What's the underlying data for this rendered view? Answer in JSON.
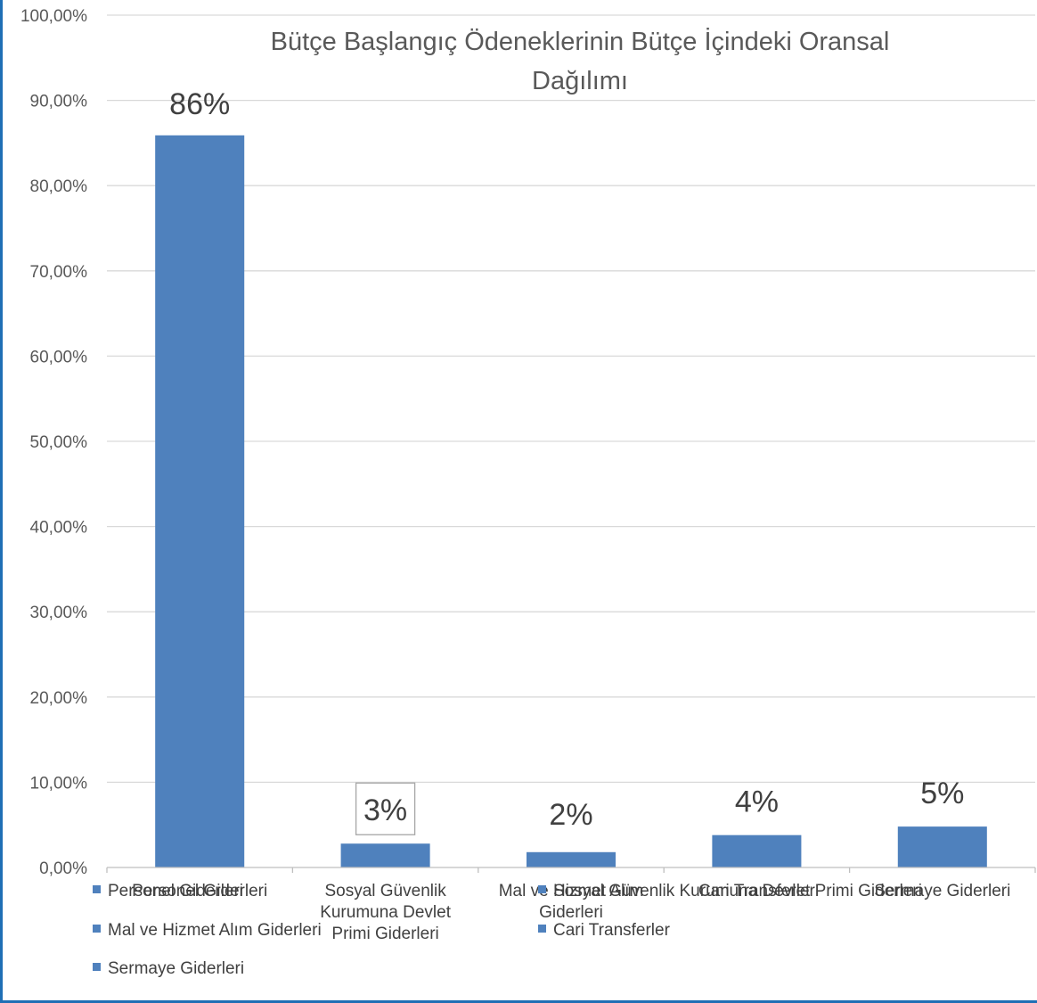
{
  "chart_data": {
    "type": "bar",
    "title_lines": [
      "Bütçe Başlangıç Ödeneklerinin Bütçe İçindeki Oransal",
      "Dağılımı"
    ],
    "categories": [
      [
        "Personel Giderleri"
      ],
      [
        "Sosyal Güvenlik",
        "Kurumuna Devlet",
        "Primi Giderleri"
      ],
      [
        "Mal ve Hizmet Alım",
        "Giderleri"
      ],
      [
        "Cari Transferler"
      ],
      [
        "Sermaye Giderleri"
      ]
    ],
    "values": [
      0.859,
      0.028,
      0.018,
      0.038,
      0.048
    ],
    "data_labels": [
      "86%",
      "3%",
      "2%",
      "4%",
      "5%"
    ],
    "y_ticks": [
      "0,00%",
      "10,00%",
      "20,00%",
      "30,00%",
      "40,00%",
      "50,00%",
      "60,00%",
      "70,00%",
      "80,00%",
      "90,00%",
      "100,00%"
    ],
    "ylim": [
      0,
      1
    ],
    "grid": true,
    "bar_color": "#4f81bd",
    "legend": {
      "placement": "bottom",
      "entries": [
        "Personel Giderleri",
        "Sosyal Güvenlik Kurumuna Devlet Primi Giderleri",
        "Mal ve Hizmet Alım Giderleri",
        "Cari Transferler",
        "Sermaye Giderleri"
      ]
    }
  },
  "colors": {
    "frame": "#1f6fb5",
    "grid": "#d9d9d9",
    "axis": "#bfbfbf"
  }
}
